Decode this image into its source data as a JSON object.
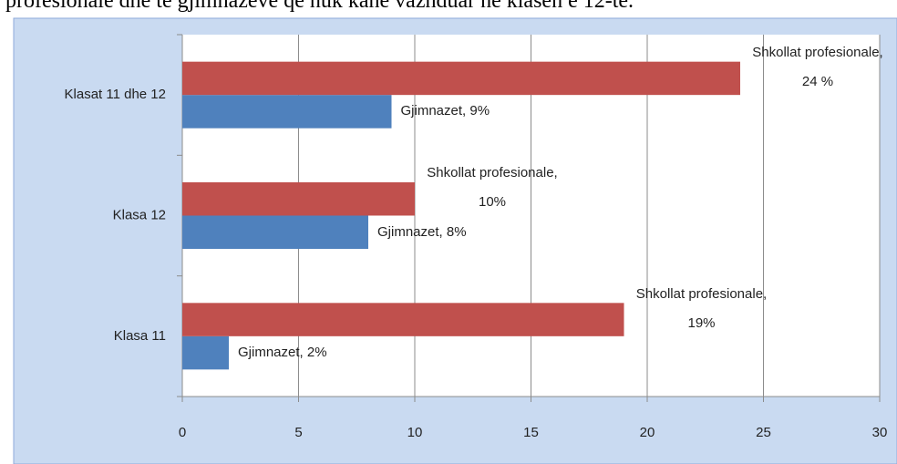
{
  "caption": "profesionale dhe te gjimnazeve qe nuk kane vazhduar ne klasen e 12-te.",
  "chart_data": {
    "type": "bar",
    "orientation": "horizontal",
    "categories": [
      "Klasa 11",
      "Klasa 12",
      "Klasat 11 dhe 12"
    ],
    "series": [
      {
        "color": "#4f81bd",
        "values": [
          2,
          8,
          9
        ],
        "value_labels": [
          "Gjimnazet, 2%",
          "Gjimnazet, 8%",
          "Gjimnazet, 9%"
        ]
      },
      {
        "color": "#c0504d",
        "values": [
          19,
          10,
          24
        ],
        "value_labels": [
          "Shkollat profesionale, 19%",
          "Shkollat profesionale, 10%",
          "Shkollat profesionale, 24 %"
        ]
      }
    ],
    "xlim": [
      0,
      30
    ],
    "xticks": [
      0,
      5,
      10,
      15,
      20,
      25,
      30
    ],
    "grid": true
  }
}
